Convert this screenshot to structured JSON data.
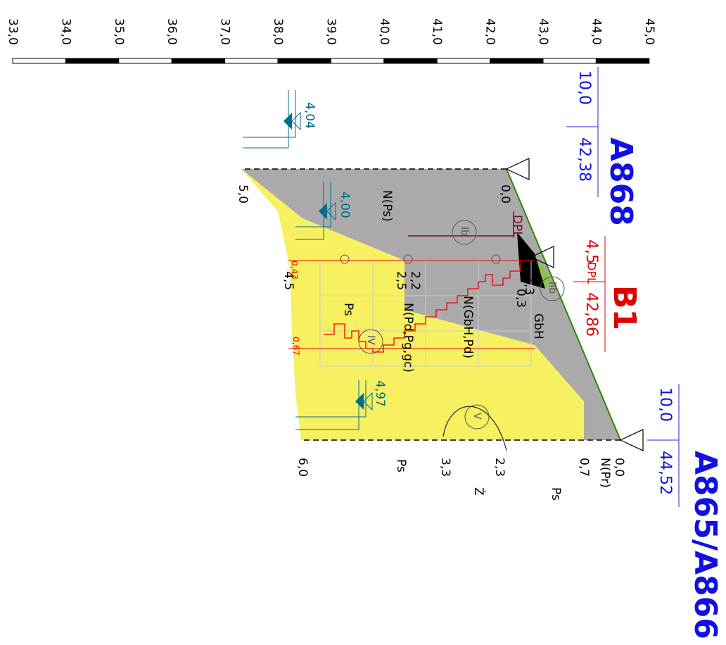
{
  "scale": {
    "labels": [
      "33,0",
      "34,0",
      "35,0",
      "36,0",
      "37,0",
      "38,0",
      "39,0",
      "40,0",
      "41,0",
      "42,0",
      "43,0",
      "44,0",
      "45,0"
    ]
  },
  "boreholes": [
    {
      "name": "A868",
      "depth": "10,0",
      "elevation": "42,38"
    },
    {
      "name": "B1",
      "depth": "4,5",
      "method": "DPL",
      "elevation": "42,86"
    },
    {
      "name": "A865/A866",
      "depth": "10,0",
      "elevation": "44,52"
    }
  ],
  "water_levels": [
    "4,04",
    "4,00",
    "4,97"
  ],
  "labels": {
    "left": [
      "0,0",
      "5,0"
    ],
    "right": [
      "0,0",
      "N(Pr)",
      "0,7",
      "2,3",
      "3,3",
      "6,0",
      "Ps",
      "Ż",
      "Ps"
    ],
    "middle": [
      "N(Ps)",
      "DPL",
      "GbH",
      "N(GbH,Pd)",
      "2,2",
      "2,5",
      "N(Pd,Pg,gc)",
      "Ps",
      "4,5",
      "1,3",
      "0,3"
    ],
    "layers": [
      "Ib",
      "IIb",
      "IV",
      "V"
    ],
    "dpl_values": [
      "0,43",
      "0,67"
    ]
  }
}
